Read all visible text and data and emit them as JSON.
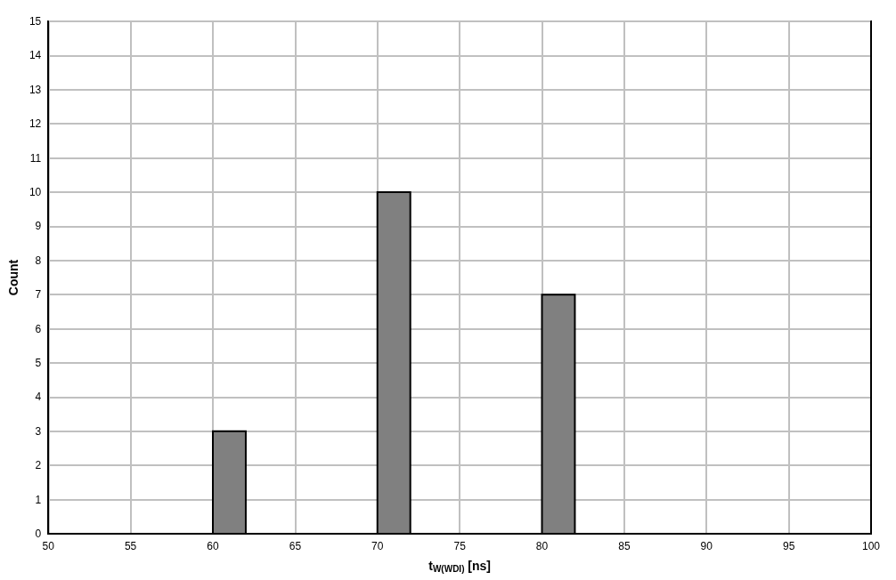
{
  "chart_data": {
    "type": "histogram",
    "xlabel": "t$_{W(WDI)}$ [ns]",
    "ylabel": "Count",
    "bins": [
      50,
      52,
      54,
      56,
      58,
      60,
      62,
      64,
      66,
      68,
      70,
      72,
      74,
      76,
      78,
      80,
      82,
      84,
      86,
      88,
      90,
      92,
      94,
      96,
      98,
      100
    ],
    "values": [
      0,
      0,
      0,
      0,
      0,
      3,
      0,
      0,
      0,
      0,
      10,
      0,
      0,
      0,
      0,
      7,
      0,
      0,
      0,
      0,
      0,
      0,
      0,
      0,
      0
    ],
    "color": "#808080",
    "xlim": [
      50,
      100
    ],
    "xticks": [
      50,
      55,
      60,
      65,
      70,
      75,
      80,
      85,
      90,
      95,
      100
    ],
    "ylim": [
      0,
      15
    ],
    "yticks": [
      0,
      1,
      2,
      3,
      4,
      5,
      6,
      7,
      8,
      9,
      10,
      11,
      12,
      13,
      14,
      15
    ],
    "grid": true
  }
}
